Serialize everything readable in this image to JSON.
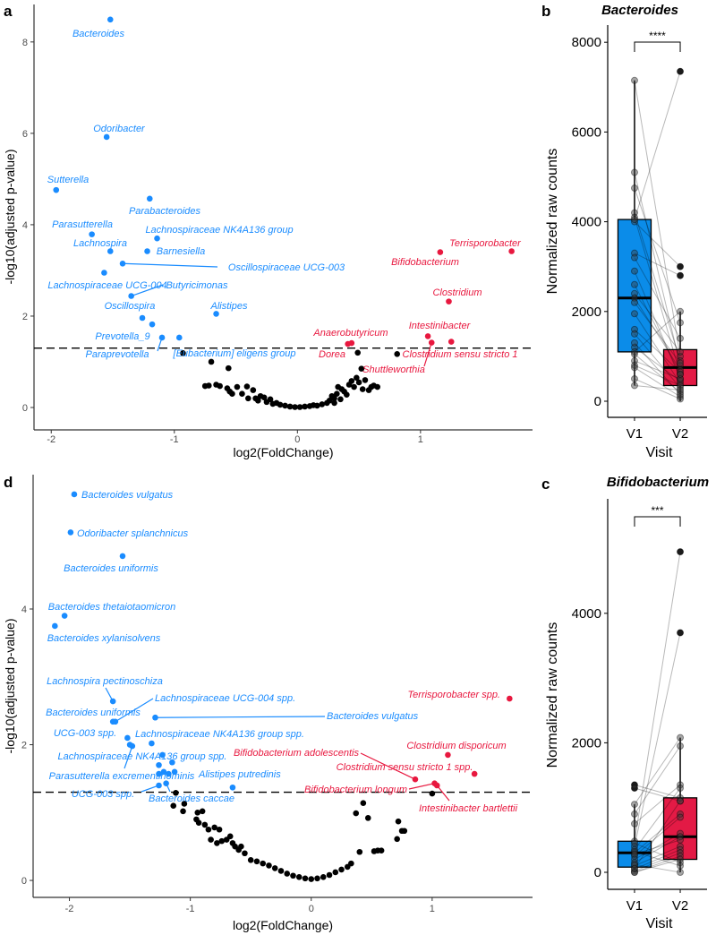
{
  "colors": {
    "down": "#1a8cff",
    "up": "#e8183f",
    "ns": "#000000",
    "box_v1": "#0b8ce9",
    "box_v2": "#e31a45"
  },
  "chart_data": [
    {
      "type": "scatter",
      "panel_letter": "a",
      "xlabel": "log2(FoldChange)",
      "ylabel": "-log10(adjusted p-value)",
      "xlim": [
        -2.14,
        1.91
      ],
      "ylim": [
        -0.49,
        8.82
      ],
      "xticks": [
        "-2",
        "-1",
        "0",
        "1"
      ],
      "yticks": [
        "0",
        "2",
        "4",
        "6",
        "8"
      ],
      "threshold": 1.3,
      "labeled": [
        {
          "label": "Bacteroides",
          "x": -1.52,
          "y": 8.49,
          "group": "down"
        },
        {
          "label": "Odoribacter",
          "x": -1.55,
          "y": 5.92,
          "group": "down"
        },
        {
          "label": "Sutterella",
          "x": -1.96,
          "y": 4.76,
          "group": "down"
        },
        {
          "label": "Parabacteroides",
          "x": -1.2,
          "y": 4.57,
          "group": "down"
        },
        {
          "label": "Parasutterella",
          "x": -1.67,
          "y": 3.79,
          "group": "down"
        },
        {
          "label": "Lachnospiraceae NK4A136 group",
          "x": -1.14,
          "y": 3.7,
          "group": "down"
        },
        {
          "label": "Lachnospira",
          "x": -1.52,
          "y": 3.42,
          "group": "down"
        },
        {
          "label": "Barnesiella",
          "x": -1.22,
          "y": 3.42,
          "group": "down"
        },
        {
          "label": "Oscillospiraceae UCG-003",
          "x": -1.42,
          "y": 3.15,
          "group": "down"
        },
        {
          "label": "Lachnospiraceae UCG-004",
          "x": -1.57,
          "y": 2.95,
          "group": "down"
        },
        {
          "label": "Butyricimonas",
          "x": -1.35,
          "y": 2.44,
          "group": "down"
        },
        {
          "label": "Alistipes",
          "x": -0.66,
          "y": 2.05,
          "group": "down"
        },
        {
          "label": "Oscillospira",
          "x": -1.26,
          "y": 1.96,
          "group": "down"
        },
        {
          "label": "Prevotella_9",
          "x": -1.18,
          "y": 1.82,
          "group": "down"
        },
        {
          "label": "Paraprevotella",
          "x": -1.1,
          "y": 1.53,
          "group": "down"
        },
        {
          "label": "[Eubacterium] eligens group",
          "x": -0.96,
          "y": 1.53,
          "group": "down"
        },
        {
          "label": "Terrisporobacter",
          "x": 1.74,
          "y": 3.42,
          "group": "up"
        },
        {
          "label": "Bifidobacterium",
          "x": 1.16,
          "y": 3.4,
          "group": "up"
        },
        {
          "label": "Clostridium",
          "x": 1.23,
          "y": 2.32,
          "group": "up"
        },
        {
          "label": "Intestinibacter",
          "x": 1.06,
          "y": 1.56,
          "group": "up"
        },
        {
          "label": "Clostridium sensu stricto 1",
          "x": 1.25,
          "y": 1.44,
          "group": "up"
        },
        {
          "label": "Shuttleworthia",
          "x": 1.09,
          "y": 1.42,
          "group": "up"
        },
        {
          "label": "Anaerobutyricum",
          "x": 0.44,
          "y": 1.41,
          "group": "up"
        },
        {
          "label": "Dorea",
          "x": 0.41,
          "y": 1.39,
          "group": "up"
        }
      ],
      "unlabeled_sig": [],
      "nonsig": [
        [
          -0.93,
          1.19
        ],
        [
          -0.7,
          1.0
        ],
        [
          -0.56,
          0.86
        ],
        [
          -0.75,
          0.47
        ],
        [
          -0.72,
          0.48
        ],
        [
          -0.66,
          0.5
        ],
        [
          -0.63,
          0.47
        ],
        [
          -0.57,
          0.42
        ],
        [
          -0.55,
          0.35
        ],
        [
          -0.53,
          0.3
        ],
        [
          -0.49,
          0.45
        ],
        [
          -0.41,
          0.46
        ],
        [
          -0.36,
          0.38
        ],
        [
          -0.34,
          0.2
        ],
        [
          -0.3,
          0.25
        ],
        [
          -0.27,
          0.22
        ],
        [
          -0.25,
          0.12
        ],
        [
          -0.22,
          0.18
        ],
        [
          -0.2,
          0.08
        ],
        [
          -0.17,
          0.1
        ],
        [
          -0.14,
          0.06
        ],
        [
          -0.1,
          0.04
        ],
        [
          -0.06,
          0.02
        ],
        [
          -0.02,
          0.01
        ],
        [
          0.02,
          0.01
        ],
        [
          0.06,
          0.02
        ],
        [
          0.1,
          0.03
        ],
        [
          0.13,
          0.05
        ],
        [
          0.16,
          0.04
        ],
        [
          0.2,
          0.07
        ],
        [
          0.24,
          0.1
        ],
        [
          0.26,
          0.15
        ],
        [
          0.28,
          0.25
        ],
        [
          0.3,
          0.2
        ],
        [
          0.32,
          0.3
        ],
        [
          0.33,
          0.45
        ],
        [
          0.36,
          0.4
        ],
        [
          0.38,
          0.35
        ],
        [
          0.4,
          0.28
        ],
        [
          0.42,
          0.5
        ],
        [
          0.44,
          0.58
        ],
        [
          0.46,
          0.45
        ],
        [
          0.48,
          0.65
        ],
        [
          0.5,
          0.55
        ],
        [
          0.52,
          0.85
        ],
        [
          0.53,
          0.4
        ],
        [
          0.55,
          0.6
        ],
        [
          0.58,
          0.38
        ],
        [
          0.6,
          0.45
        ],
        [
          0.62,
          0.48
        ],
        [
          0.65,
          0.45
        ],
        [
          0.49,
          1.2
        ],
        [
          0.81,
          1.17
        ],
        [
          0.3,
          0.1
        ],
        [
          -0.4,
          0.2
        ],
        [
          -0.45,
          0.3
        ],
        [
          -0.32,
          0.15
        ],
        [
          0.35,
          0.18
        ]
      ]
    },
    {
      "type": "box",
      "panel_letter": "b",
      "title": "Bacteroides",
      "xlabel": "Visit",
      "ylabel": "Normalized raw counts",
      "categories": [
        "V1",
        "V2"
      ],
      "ylim": [
        -359,
        8383
      ],
      "yticks": [
        "0",
        "2000",
        "4000",
        "6000",
        "8000"
      ],
      "significance": "****",
      "stats": [
        {
          "q1": 1100,
          "median": 2300,
          "q3": 4050,
          "whisker_low": 350,
          "whisker_high": 7150,
          "outliers": []
        },
        {
          "q1": 350,
          "median": 750,
          "q3": 1150,
          "whisker_low": 0,
          "whisker_high": 2000,
          "outliers": [
            2800,
            3000,
            7350
          ]
        }
      ],
      "pairs": [
        [
          7150,
          1000
        ],
        [
          5100,
          800
        ],
        [
          4750,
          1750
        ],
        [
          4200,
          900
        ],
        [
          4100,
          600
        ],
        [
          4000,
          3000
        ],
        [
          3300,
          2800
        ],
        [
          3200,
          1400
        ],
        [
          2900,
          500
        ],
        [
          2400,
          1100
        ],
        [
          2300,
          700
        ],
        [
          2200,
          850
        ],
        [
          1950,
          400
        ],
        [
          1600,
          650
        ],
        [
          1500,
          300
        ],
        [
          1200,
          450
        ],
        [
          1100,
          2000
        ],
        [
          1050,
          200
        ],
        [
          900,
          500
        ],
        [
          800,
          350
        ],
        [
          750,
          100
        ],
        [
          500,
          50
        ],
        [
          350,
          250
        ],
        [
          4050,
          7350
        ],
        [
          2600,
          600
        ],
        [
          1300,
          150
        ]
      ]
    },
    {
      "type": "scatter",
      "panel_letter": "d",
      "xlabel": "log2(FoldChange)",
      "ylabel": "-log10(adjusted p-value)",
      "xlim": [
        -2.3,
        1.83
      ],
      "ylim": [
        -0.25,
        5.98
      ],
      "xticks": [
        "-2",
        "-1",
        "0",
        "1"
      ],
      "yticks": [
        "0",
        "2",
        "4"
      ],
      "threshold": 1.3,
      "labeled": [
        {
          "label": "Bacteroides vulgatus",
          "x": -1.96,
          "y": 5.69,
          "group": "down"
        },
        {
          "label": "Odoribacter splanchnicus",
          "x": -1.99,
          "y": 5.13,
          "group": "down"
        },
        {
          "label": "Bacteroides uniformis",
          "x": -1.56,
          "y": 4.78,
          "group": "down"
        },
        {
          "label": "Bacteroides thetaiotaomicron",
          "x": -2.04,
          "y": 3.9,
          "group": "down"
        },
        {
          "label": "Bacteroides xylanisolvens",
          "x": -2.12,
          "y": 3.75,
          "group": "down"
        },
        {
          "label": "Lachnospira pectinoschiza",
          "x": -1.64,
          "y": 2.64,
          "group": "down"
        },
        {
          "label": "Lachnospiraceae UCG-004 spp.",
          "x": -1.62,
          "y": 2.34,
          "group": "down"
        },
        {
          "label": "Bacteroides uniformis",
          "x": -1.64,
          "y": 2.34,
          "group": "down"
        },
        {
          "label": "Bacteroides vulgatus",
          "x": -1.29,
          "y": 2.4,
          "group": "down"
        },
        {
          "label": "UCG-003 spp.",
          "x": -1.52,
          "y": 2.1,
          "group": "down"
        },
        {
          "label": "Lachnospiraceae NK4A136 group spp.",
          "x": -1.32,
          "y": 2.02,
          "group": "down"
        },
        {
          "label": "Lachnospiraceae NK4A136 group spp.",
          "x": -1.48,
          "y": 1.98,
          "group": "down"
        },
        {
          "label": "Parasutterella excrementihominis",
          "x": -1.26,
          "y": 1.57,
          "group": "down"
        },
        {
          "label": "Alistipes putredinis",
          "x": -0.65,
          "y": 1.37,
          "group": "down"
        },
        {
          "label": "UCG-003 spp.",
          "x": -1.26,
          "y": 1.4,
          "group": "down"
        },
        {
          "label": "Bacteroides caccae",
          "x": -1.2,
          "y": 1.43,
          "group": "down"
        },
        {
          "label": "Terrisporobacter spp.",
          "x": 1.64,
          "y": 2.68,
          "group": "up"
        },
        {
          "label": "Clostridium disporicum",
          "x": 1.13,
          "y": 1.85,
          "group": "up"
        },
        {
          "label": "Clostridium sensu stricto 1 spp.",
          "x": 1.35,
          "y": 1.57,
          "group": "up"
        },
        {
          "label": "Bifidobacterium adolescentis",
          "x": 0.86,
          "y": 1.49,
          "group": "up"
        },
        {
          "label": "Bifidobacterium longum",
          "x": 1.02,
          "y": 1.43,
          "group": "up"
        },
        {
          "label": "Intestinibacter bartlettii",
          "x": 1.04,
          "y": 1.4,
          "group": "up"
        }
      ],
      "unlabeled_sig": [
        [
          -1.5,
          2.0
        ],
        [
          -1.23,
          1.85
        ],
        [
          -1.15,
          1.74
        ],
        [
          -1.26,
          1.7
        ],
        [
          -1.22,
          1.6
        ],
        [
          -1.18,
          1.57
        ],
        [
          -1.13,
          1.6
        ]
      ],
      "nonsig": [
        [
          -1.12,
          1.29
        ],
        [
          -1.14,
          1.1
        ],
        [
          -1.06,
          1.02
        ],
        [
          -1.05,
          1.13
        ],
        [
          -0.94,
          1.0
        ],
        [
          -0.9,
          1.02
        ],
        [
          -0.95,
          0.9
        ],
        [
          -0.93,
          0.85
        ],
        [
          -0.88,
          0.82
        ],
        [
          -0.85,
          0.75
        ],
        [
          -0.8,
          0.78
        ],
        [
          -0.76,
          0.75
        ],
        [
          -0.83,
          0.6
        ],
        [
          -0.78,
          0.55
        ],
        [
          -0.74,
          0.58
        ],
        [
          -0.7,
          0.6
        ],
        [
          -0.67,
          0.65
        ],
        [
          -0.63,
          0.5
        ],
        [
          -0.6,
          0.45
        ],
        [
          -0.55,
          0.4
        ],
        [
          -0.5,
          0.3
        ],
        [
          -0.45,
          0.28
        ],
        [
          -0.4,
          0.25
        ],
        [
          -0.35,
          0.22
        ],
        [
          -0.3,
          0.18
        ],
        [
          -0.25,
          0.14
        ],
        [
          -0.2,
          0.1
        ],
        [
          -0.15,
          0.07
        ],
        [
          -0.1,
          0.05
        ],
        [
          -0.05,
          0.03
        ],
        [
          0,
          0.02
        ],
        [
          0.05,
          0.03
        ],
        [
          0.1,
          0.05
        ],
        [
          0.15,
          0.08
        ],
        [
          0.2,
          0.12
        ],
        [
          0.25,
          0.16
        ],
        [
          0.3,
          0.2
        ],
        [
          0.33,
          0.25
        ],
        [
          1.0,
          1.28
        ],
        [
          0.43,
          1.14
        ],
        [
          0.37,
          0.99
        ],
        [
          0.47,
          0.92
        ],
        [
          0.72,
          0.87
        ],
        [
          0.77,
          0.73
        ],
        [
          0.75,
          0.73
        ],
        [
          0.71,
          0.61
        ],
        [
          0.4,
          0.42
        ],
        [
          0.52,
          0.43
        ],
        [
          0.55,
          0.44
        ],
        [
          0.58,
          0.44
        ],
        [
          -0.65,
          0.55
        ],
        [
          -0.58,
          0.5
        ]
      ]
    },
    {
      "type": "box",
      "panel_letter": "c",
      "title": "Bifidobacterium",
      "xlabel": "Visit",
      "ylabel": "Normalized raw counts",
      "categories": [
        "V1",
        "V2"
      ],
      "ylim": [
        -263,
        5768
      ],
      "yticks": [
        "0",
        "2000",
        "4000"
      ],
      "significance": "***",
      "stats": [
        {
          "q1": 80,
          "median": 300,
          "q3": 480,
          "whisker_low": 0,
          "whisker_high": 1050,
          "outliers": [
            1300,
            1350
          ]
        },
        {
          "q1": 200,
          "median": 550,
          "q3": 1150,
          "whisker_low": 0,
          "whisker_high": 2080,
          "outliers": [
            3700,
            4950
          ]
        }
      ],
      "pairs": [
        [
          1350,
          1150
        ],
        [
          1300,
          1100
        ],
        [
          1050,
          2080
        ],
        [
          900,
          1950
        ],
        [
          750,
          1350
        ],
        [
          480,
          4950
        ],
        [
          400,
          3700
        ],
        [
          350,
          1300
        ],
        [
          300,
          900
        ],
        [
          250,
          850
        ],
        [
          200,
          600
        ],
        [
          150,
          550
        ],
        [
          100,
          400
        ],
        [
          50,
          350
        ],
        [
          20,
          300
        ],
        [
          0,
          250
        ],
        [
          0,
          200
        ],
        [
          450,
          150
        ],
        [
          320,
          100
        ],
        [
          120,
          0
        ],
        [
          60,
          1100
        ],
        [
          280,
          500
        ]
      ]
    }
  ]
}
